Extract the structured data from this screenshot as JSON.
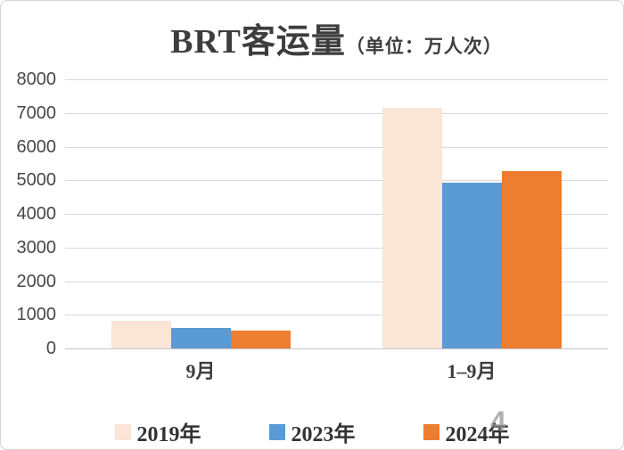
{
  "title": {
    "main": "BRT客运量",
    "unit": "（单位：万人次）"
  },
  "chart_data": {
    "type": "bar",
    "title": "BRT客运量（单位：万人次）",
    "categories": [
      "9月",
      "1–9月"
    ],
    "series": [
      {
        "name": "2019年",
        "color": "#FBE5D6",
        "values": [
          820,
          7150
        ]
      },
      {
        "name": "2023年",
        "color": "#5B9BD5",
        "values": [
          600,
          4930
        ]
      },
      {
        "name": "2024年",
        "color": "#ED7D31",
        "values": [
          540,
          5280
        ]
      }
    ],
    "xlabel": "",
    "ylabel": "",
    "ylim": [
      0,
      8000
    ],
    "yticks": [
      0,
      1000,
      2000,
      3000,
      4000,
      5000,
      6000,
      7000,
      8000
    ],
    "grid": true,
    "legend_position": "bottom"
  },
  "axis": {
    "grid_color": "#D9D9D9",
    "baseline_color": "#C6C6C6",
    "tick_label_color": "#474747"
  },
  "watermark": {
    "text": "4"
  }
}
